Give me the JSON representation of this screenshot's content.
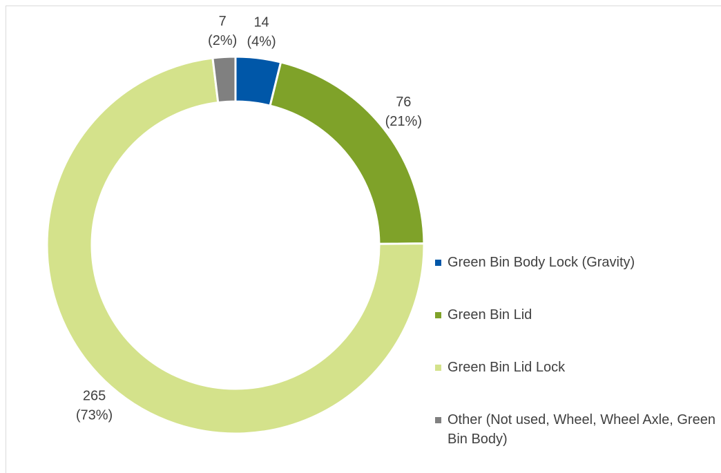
{
  "chart_data": {
    "type": "donut",
    "categories": [
      "Green Bin Body Lock (Gravity)",
      "Green Bin Lid",
      "Green Bin Lid Lock",
      "Other (Not used, Wheel, Wheel Axle, Green Bin Body)"
    ],
    "values": [
      14,
      76,
      265,
      7
    ],
    "percent_labels": [
      "(4%)",
      "(21%)",
      "(73%)",
      "(2%)"
    ],
    "colors": [
      "#0057a8",
      "#7fa229",
      "#d4e28b",
      "#808080"
    ],
    "legend": "right"
  }
}
